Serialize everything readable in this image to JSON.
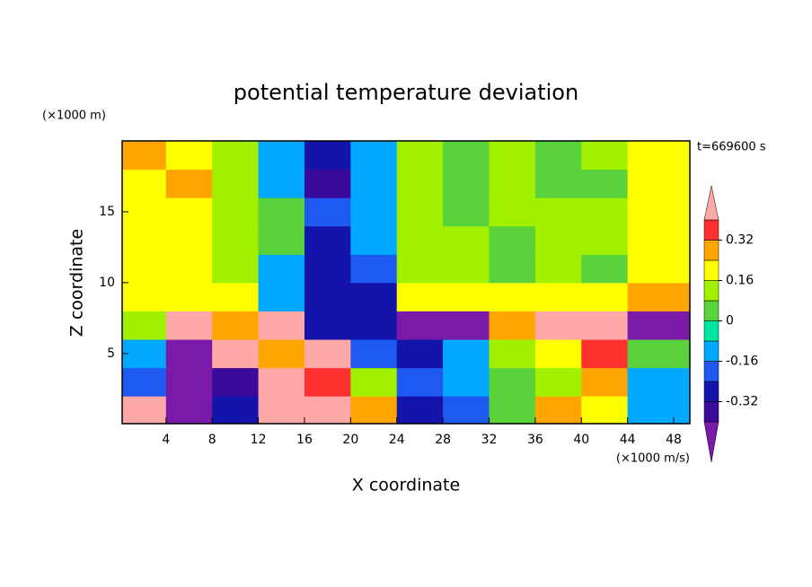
{
  "chart_data": {
    "type": "heatmap",
    "title": "potential temperature deviation",
    "x_label": "X coordinate",
    "y_label": "Z coordinate",
    "x_unit": "(×1000 m/s)",
    "y_unit": "(×1000 m)",
    "time_label": "t=669600 s",
    "x": [
      2,
      6,
      10,
      14,
      18,
      22,
      26,
      30,
      34,
      38,
      42,
      46
    ],
    "y": [
      1,
      3,
      5,
      7,
      9,
      11,
      13,
      15,
      17,
      19
    ],
    "z": [
      [
        0.42,
        -0.45,
        -0.3,
        0.45,
        0.4,
        0.3,
        -0.3,
        -0.2,
        0,
        0.3,
        0.2,
        -0.1
      ],
      [
        -0.2,
        -0.45,
        -0.4,
        0.45,
        0.35,
        0.1,
        -0.2,
        -0.1,
        0.05,
        0.1,
        0.3,
        -0.1
      ],
      [
        -0.1,
        -0.45,
        0.42,
        0.3,
        0.45,
        -0.2,
        -0.3,
        -0.1,
        0.1,
        0.2,
        0.35,
        0
      ],
      [
        0.1,
        0.42,
        0.3,
        0.45,
        -0.3,
        -0.25,
        -0.45,
        -0.45,
        0.3,
        0.45,
        0.45,
        -0.45
      ],
      [
        0.22,
        0.2,
        0.18,
        -0.1,
        -0.3,
        -0.3,
        0.2,
        0.2,
        0.2,
        0.2,
        0.2,
        0.25
      ],
      [
        0.2,
        0.2,
        0.1,
        -0.1,
        -0.28,
        -0.2,
        0.1,
        0.15,
        0.05,
        0.1,
        0.05,
        0.2
      ],
      [
        0.2,
        0.2,
        0.15,
        0,
        -0.25,
        -0.1,
        0.1,
        0.1,
        0.05,
        0.1,
        0.1,
        0.2
      ],
      [
        0.2,
        0.2,
        0.15,
        0,
        -0.2,
        -0.1,
        0.1,
        0.05,
        0.1,
        0.1,
        0.1,
        0.2
      ],
      [
        0.2,
        0.25,
        0.1,
        -0.1,
        -0.35,
        -0.15,
        0.1,
        0.05,
        0.1,
        0.05,
        0.05,
        0.2
      ],
      [
        0.28,
        0.2,
        0.1,
        -0.1,
        -0.3,
        -0.1,
        0.1,
        0.05,
        0.1,
        0.05,
        0.1,
        0.2
      ]
    ],
    "xlim": [
      0.2,
      49.4
    ],
    "ylim": [
      0.05,
      20
    ],
    "xticks": [
      4,
      8,
      12,
      16,
      20,
      24,
      28,
      32,
      36,
      40,
      44,
      48
    ],
    "yticks": [
      5,
      10,
      15
    ],
    "levels": [
      -0.4,
      -0.32,
      -0.24,
      -0.16,
      -0.08,
      0,
      0.08,
      0.16,
      0.24,
      0.32,
      0.4
    ],
    "colors": [
      "#7a1aa8",
      "#3c0a9a",
      "#1414aa",
      "#1e5af0",
      "#00a8ff",
      "#00e6a0",
      "#5ad23c",
      "#a0f000",
      "#ffff00",
      "#ffa500",
      "#ff3030",
      "#ffa8a8"
    ],
    "colorbar_ticks": [
      -0.32,
      -0.16,
      0,
      0.16,
      0.32
    ]
  }
}
